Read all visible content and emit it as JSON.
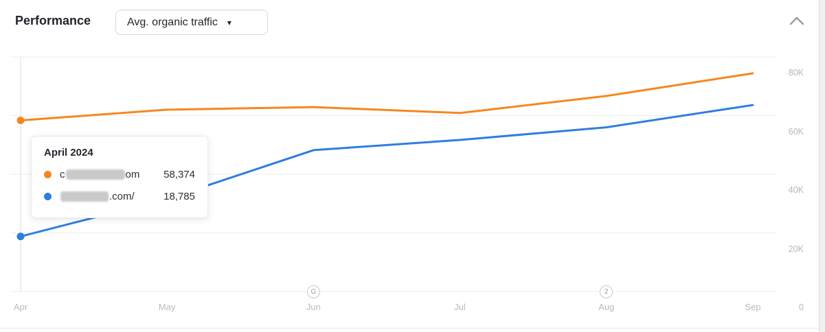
{
  "header": {
    "title": "Performance",
    "metric_dropdown": {
      "label": "Avg. organic traffic",
      "caret_icon": "▾"
    },
    "collapse_icon": "chevron-up"
  },
  "chart_data": {
    "type": "line",
    "categories": [
      "Apr",
      "May",
      "Jun",
      "Jul",
      "Aug",
      "Sep"
    ],
    "y_ticks": [
      {
        "label": "80K",
        "value": 80000
      },
      {
        "label": "60K",
        "value": 60000
      },
      {
        "label": "40K",
        "value": 40000
      },
      {
        "label": "20K",
        "value": 20000
      },
      {
        "label": "0",
        "value": 0
      }
    ],
    "ylim": [
      0,
      80000
    ],
    "grid": true,
    "legend_position": "none",
    "series": [
      {
        "name": "masked-domain-.com",
        "color": "#f6871f",
        "values": [
          58374,
          62000,
          62900,
          60900,
          66700,
          74400
        ]
      },
      {
        "name": "masked-domain-.com/",
        "color": "#2e7de1",
        "values": [
          18785,
          31600,
          48200,
          51700,
          56000,
          63600
        ]
      }
    ],
    "annotations": [
      {
        "label": "G",
        "category_index": 2
      },
      {
        "label": "2",
        "category_index": 4
      }
    ],
    "hover": {
      "category": "Apr",
      "crosshair": true,
      "dot_category_index": 0
    }
  },
  "tooltip": {
    "title": "April 2024",
    "rows": [
      {
        "masked_prefix": "c",
        "masked_suffix": "om",
        "value": "58,374",
        "color": "#f6871f",
        "blur_width": 86
      },
      {
        "masked_prefix": "",
        "masked_suffix": ".com/",
        "value": "18,785",
        "color": "#2e7de1",
        "blur_width": 70
      }
    ]
  }
}
